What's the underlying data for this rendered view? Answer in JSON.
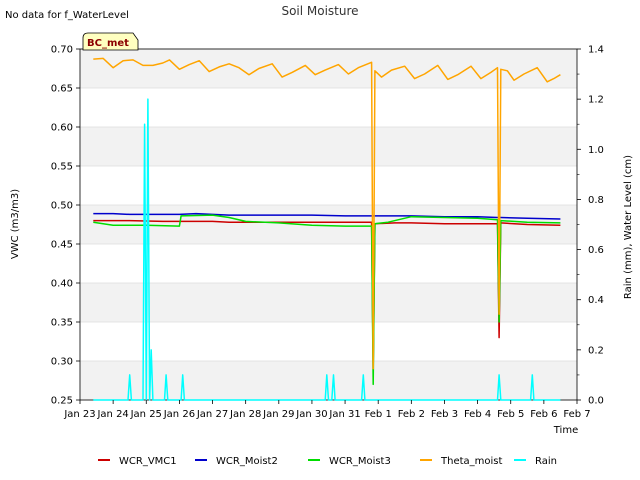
{
  "note": "No data for f_WaterLevel",
  "badge": "BC_met",
  "chart_data": {
    "type": "line",
    "title": "Soil Moisture",
    "xlabel": "Time",
    "ylabel": "VWC (m3/m3)",
    "y2label": "Rain (mm), Water Level (cm)",
    "ylim": [
      0.25,
      0.7
    ],
    "y2lim": [
      0.0,
      1.4
    ],
    "yticks": [
      "0.25",
      "0.30",
      "0.35",
      "0.40",
      "0.45",
      "0.50",
      "0.55",
      "0.60",
      "0.65",
      "0.70"
    ],
    "y2ticks": [
      "0.0",
      "0.2",
      "0.4",
      "0.6",
      "0.8",
      "1.0",
      "1.2",
      "1.4"
    ],
    "xticks": [
      "Jan 23",
      "Jan 24",
      "Jan 25",
      "Jan 26",
      "Jan 27",
      "Jan 28",
      "Jan 29",
      "Jan 30",
      "Jan 31",
      "Feb 1",
      "Feb 2",
      "Feb 3",
      "Feb 4",
      "Feb 5",
      "Feb 6",
      "Feb 7"
    ],
    "xlim": [
      0,
      15
    ],
    "series": [
      {
        "name": "WCR_VMC1",
        "color": "#cc0000",
        "axis": "left",
        "points": [
          [
            0.4,
            0.48
          ],
          [
            1.5,
            0.48
          ],
          [
            2.5,
            0.479
          ],
          [
            4,
            0.479
          ],
          [
            4.5,
            0.478
          ],
          [
            6,
            0.478
          ],
          [
            7,
            0.478
          ],
          [
            8,
            0.478
          ],
          [
            8.8,
            0.478
          ],
          [
            8.85,
            0.29
          ],
          [
            8.9,
            0.476
          ],
          [
            9.5,
            0.477
          ],
          [
            10,
            0.477
          ],
          [
            11,
            0.476
          ],
          [
            12,
            0.476
          ],
          [
            12.6,
            0.476
          ],
          [
            12.65,
            0.33
          ],
          [
            12.7,
            0.477
          ],
          [
            13.5,
            0.475
          ],
          [
            14.5,
            0.474
          ]
        ]
      },
      {
        "name": "WCR_Moist2",
        "color": "#0000cc",
        "axis": "left",
        "points": [
          [
            0.4,
            0.489
          ],
          [
            1,
            0.489
          ],
          [
            1.5,
            0.488
          ],
          [
            2,
            0.488
          ],
          [
            3,
            0.488
          ],
          [
            3.5,
            0.489
          ],
          [
            4,
            0.488
          ],
          [
            4.5,
            0.487
          ],
          [
            6,
            0.487
          ],
          [
            7,
            0.487
          ],
          [
            8,
            0.486
          ],
          [
            8.8,
            0.486
          ],
          [
            8.85,
            0.486
          ],
          [
            9,
            0.486
          ],
          [
            10,
            0.486
          ],
          [
            11,
            0.485
          ],
          [
            12,
            0.485
          ],
          [
            12.6,
            0.484
          ],
          [
            12.7,
            0.484
          ],
          [
            13.5,
            0.483
          ],
          [
            14.5,
            0.482
          ]
        ]
      },
      {
        "name": "WCR_Moist3",
        "color": "#00dd00",
        "axis": "left",
        "points": [
          [
            0.4,
            0.478
          ],
          [
            1,
            0.474
          ],
          [
            2,
            0.474
          ],
          [
            3,
            0.473
          ],
          [
            3.05,
            0.486
          ],
          [
            4,
            0.487
          ],
          [
            4.5,
            0.484
          ],
          [
            5,
            0.479
          ],
          [
            6,
            0.477
          ],
          [
            7,
            0.474
          ],
          [
            8,
            0.473
          ],
          [
            8.8,
            0.473
          ],
          [
            8.85,
            0.27
          ],
          [
            8.9,
            0.476
          ],
          [
            9.3,
            0.478
          ],
          [
            9.6,
            0.481
          ],
          [
            10,
            0.485
          ],
          [
            11,
            0.484
          ],
          [
            12,
            0.483
          ],
          [
            12.6,
            0.481
          ],
          [
            12.65,
            0.35
          ],
          [
            12.7,
            0.48
          ],
          [
            13.5,
            0.478
          ],
          [
            14.5,
            0.477
          ]
        ]
      },
      {
        "name": "Theta_moist",
        "color": "#ffa500",
        "axis": "left",
        "points": [
          [
            0.4,
            0.687
          ],
          [
            0.7,
            0.688
          ],
          [
            1.0,
            0.676
          ],
          [
            1.3,
            0.685
          ],
          [
            1.6,
            0.686
          ],
          [
            1.9,
            0.679
          ],
          [
            2.2,
            0.679
          ],
          [
            2.5,
            0.682
          ],
          [
            2.7,
            0.686
          ],
          [
            3.0,
            0.674
          ],
          [
            3.3,
            0.68
          ],
          [
            3.6,
            0.685
          ],
          [
            3.9,
            0.671
          ],
          [
            4.2,
            0.677
          ],
          [
            4.5,
            0.681
          ],
          [
            4.8,
            0.676
          ],
          [
            5.1,
            0.667
          ],
          [
            5.4,
            0.675
          ],
          [
            5.8,
            0.681
          ],
          [
            6.1,
            0.664
          ],
          [
            6.4,
            0.67
          ],
          [
            6.8,
            0.679
          ],
          [
            7.1,
            0.667
          ],
          [
            7.4,
            0.673
          ],
          [
            7.8,
            0.68
          ],
          [
            8.1,
            0.668
          ],
          [
            8.4,
            0.676
          ],
          [
            8.8,
            0.683
          ],
          [
            8.85,
            0.29
          ],
          [
            8.9,
            0.672
          ],
          [
            9.1,
            0.664
          ],
          [
            9.4,
            0.673
          ],
          [
            9.8,
            0.678
          ],
          [
            10.1,
            0.662
          ],
          [
            10.4,
            0.668
          ],
          [
            10.8,
            0.679
          ],
          [
            11.1,
            0.661
          ],
          [
            11.4,
            0.667
          ],
          [
            11.8,
            0.678
          ],
          [
            12.1,
            0.662
          ],
          [
            12.4,
            0.67
          ],
          [
            12.6,
            0.676
          ],
          [
            12.65,
            0.36
          ],
          [
            12.7,
            0.674
          ],
          [
            12.9,
            0.672
          ],
          [
            13.1,
            0.66
          ],
          [
            13.4,
            0.668
          ],
          [
            13.8,
            0.676
          ],
          [
            14.1,
            0.658
          ],
          [
            14.3,
            0.662
          ],
          [
            14.5,
            0.667
          ]
        ]
      },
      {
        "name": "Rain",
        "color": "#00ffff",
        "axis": "right",
        "points": [
          [
            0.4,
            0.0
          ],
          [
            1.45,
            0.0
          ],
          [
            1.5,
            0.1
          ],
          [
            1.55,
            0.0
          ],
          [
            1.9,
            0.0
          ],
          [
            1.95,
            1.1
          ],
          [
            2.0,
            0.0
          ],
          [
            2.05,
            1.2
          ],
          [
            2.1,
            0.0
          ],
          [
            2.15,
            0.2
          ],
          [
            2.2,
            0.0
          ],
          [
            2.55,
            0.0
          ],
          [
            2.6,
            0.1
          ],
          [
            2.65,
            0.0
          ],
          [
            3.05,
            0.0
          ],
          [
            3.1,
            0.1
          ],
          [
            3.15,
            0.0
          ],
          [
            7.4,
            0.0
          ],
          [
            7.45,
            0.1
          ],
          [
            7.5,
            0.0
          ],
          [
            7.6,
            0.0
          ],
          [
            7.65,
            0.1
          ],
          [
            7.7,
            0.0
          ],
          [
            8.5,
            0.0
          ],
          [
            8.55,
            0.1
          ],
          [
            8.6,
            0.0
          ],
          [
            12.6,
            0.0
          ],
          [
            12.65,
            0.1
          ],
          [
            12.7,
            0.0
          ],
          [
            13.6,
            0.0
          ],
          [
            13.65,
            0.1
          ],
          [
            13.7,
            0.0
          ],
          [
            14.5,
            0.0
          ]
        ]
      }
    ],
    "legend_position": "bottom",
    "grid": "alternating horizontal bands"
  }
}
